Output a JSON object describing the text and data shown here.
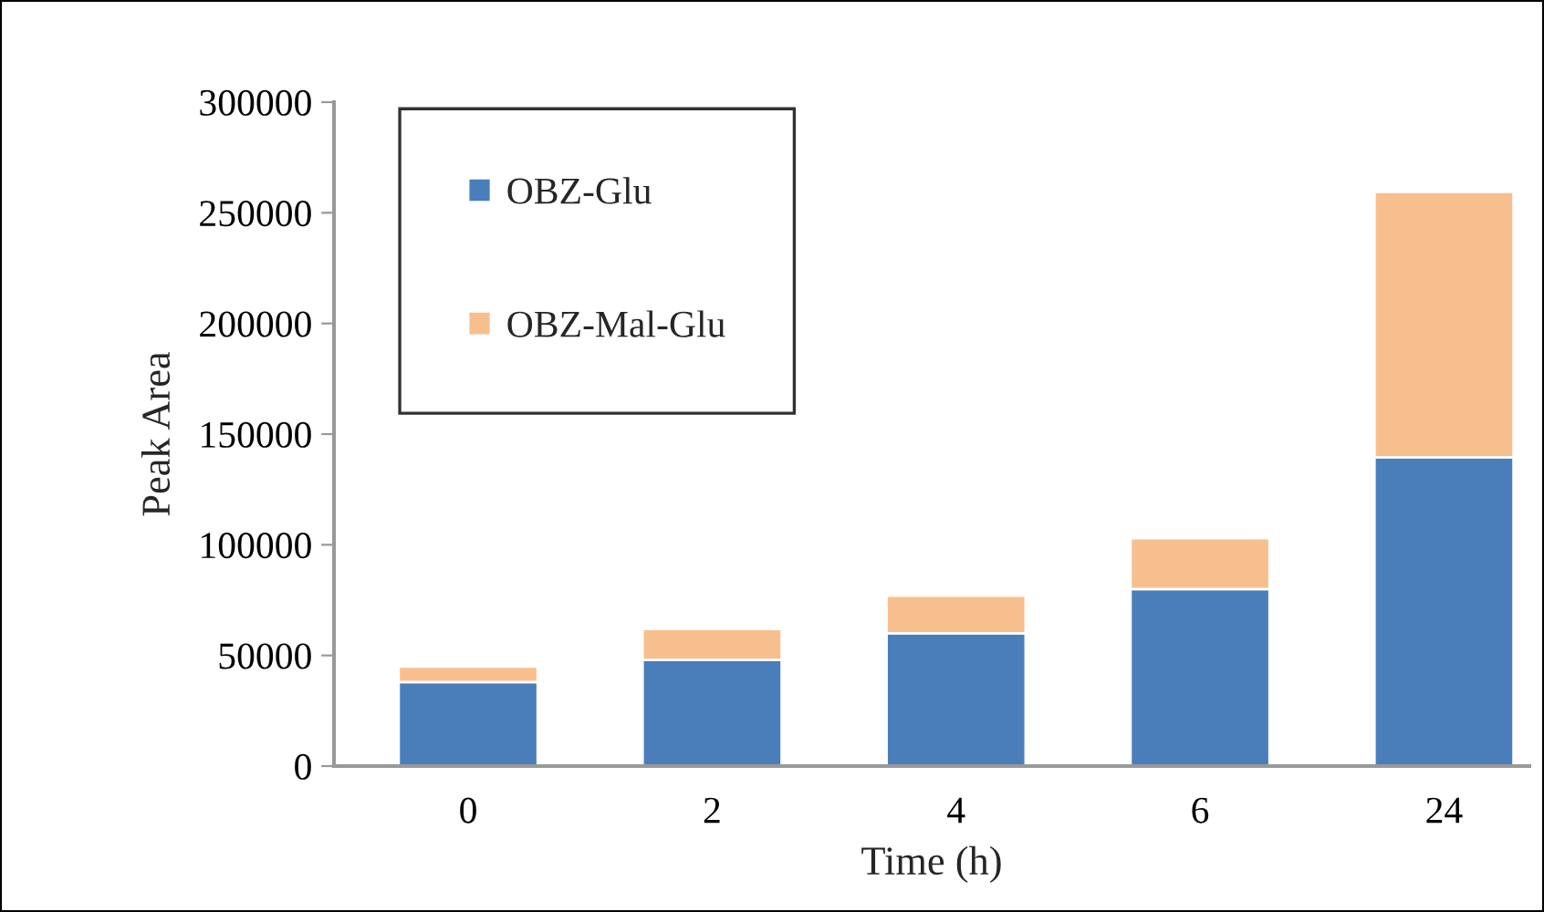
{
  "chart_data": {
    "type": "bar",
    "stacked": true,
    "xlabel": "Time (h)",
    "ylabel": "Peak Area",
    "categories": [
      "0",
      "2",
      "4",
      "6",
      "24"
    ],
    "series": [
      {
        "name": "OBZ-Glu",
        "color": "#4a7ebb",
        "values": [
          38000,
          48000,
          60000,
          80000,
          139500
        ]
      },
      {
        "name": "OBZ-Mal-Glu",
        "color": "#f8bf8e",
        "values": [
          7000,
          14000,
          17000,
          23000,
          120000
        ]
      }
    ],
    "ylim": [
      0,
      300000
    ],
    "yticks": [
      0,
      50000,
      100000,
      150000,
      200000,
      250000,
      300000
    ],
    "grid": false,
    "legend": "top left"
  }
}
